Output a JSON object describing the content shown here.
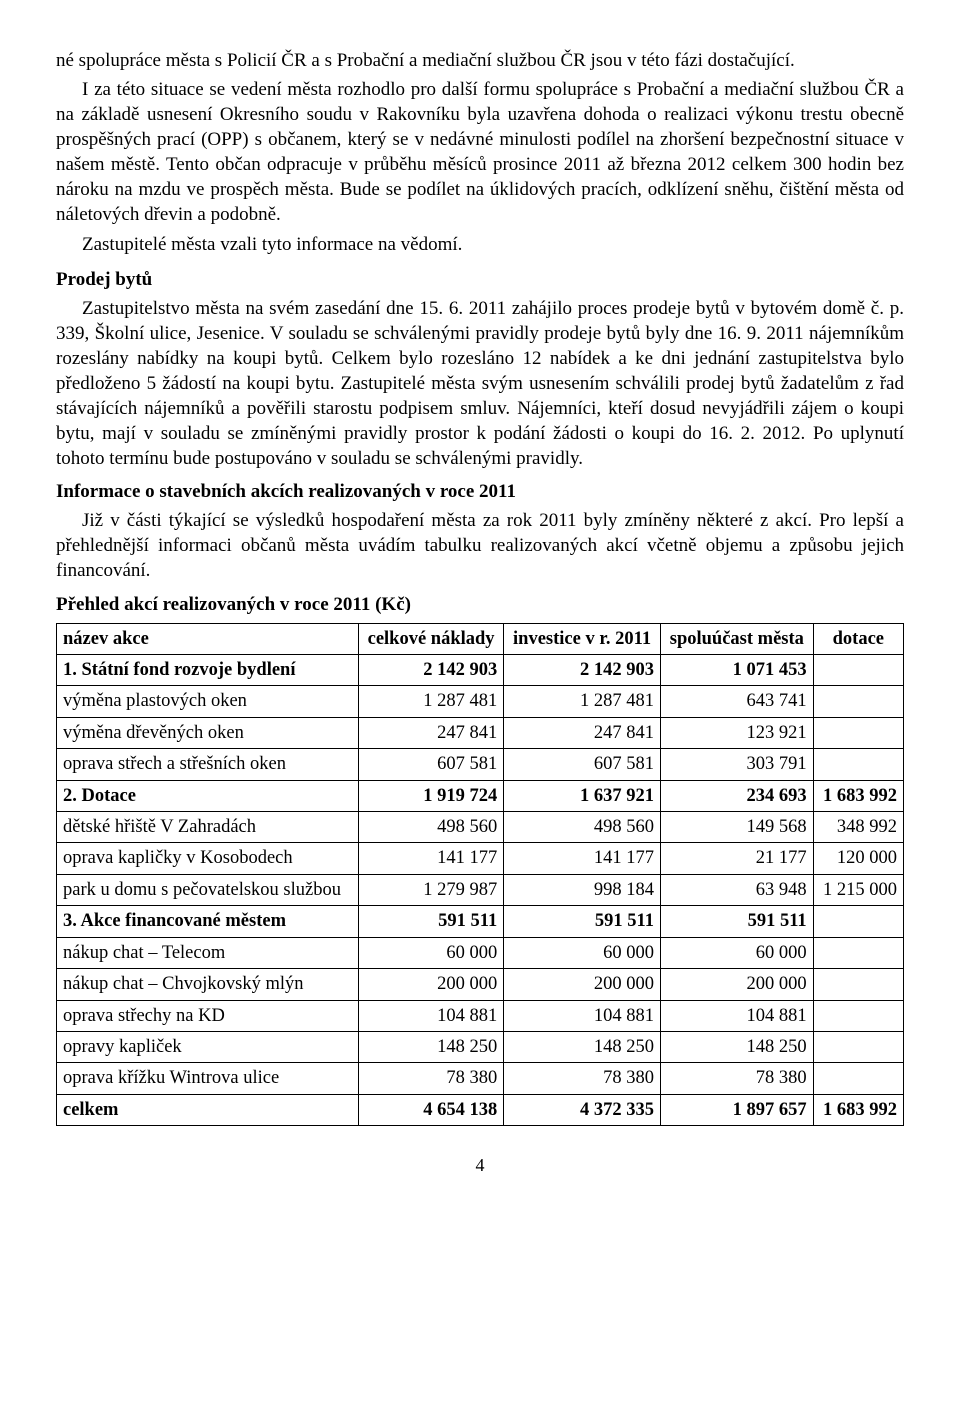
{
  "para1": "né spolupráce města s Policií ČR a s Probační a mediační službou ČR jsou v této fázi dostačující.",
  "para2": "I za této situace se vedení města rozhodlo pro další formu spolupráce s Probační a mediační službou ČR a na základě usnesení Okresního soudu v Rakovníku byla uzavřena dohoda o realizaci výkonu trestu obecně prospěšných prací (OPP) s občanem, který se v nedávné minulosti podílel na zhoršení bezpečnostní situace v našem městě. Tento občan odpracuje v průběhu měsíců prosince 2011 až března 2012 celkem 300 hodin bez nároku na mzdu ve prospěch města. Bude se podílet na úklidových pracích, odklízení sněhu, čištění města od náletových dřevin a podobně.",
  "para3": "Zastupitelé města vzali tyto informace na vědomí.",
  "heading_prodej": "Prodej bytů",
  "para4": "Zastupitelstvo města na svém zasedání dne 15. 6. 2011 zahájilo proces prodeje bytů v bytovém domě č. p. 339, Školní ulice, Jesenice. V souladu se schválenými pravidly prodeje bytů byly dne 16. 9. 2011 nájemníkům rozeslány nabídky na koupi bytů. Celkem bylo rozesláno 12 nabídek a ke dni jednání zastupitelstva bylo předloženo 5 žádostí na koupi bytu. Zastupitelé města svým usnesením schválili prodej bytů žadatelům z řad stávajících nájemníků a pověřili starostu podpisem smluv. Nájemníci, kteří dosud nevyjádřili zájem o koupi bytu, mají v souladu se zmíněnými pravidly prostor k podání žádosti o koupi do 16. 2. 2012. Po uplynutí tohoto termínu bude postupováno v souladu se schválenými pravidly.",
  "heading_info": "Informace o stavebních akcích realizovaných v roce 2011",
  "para5": "Již v části týkající se výsledků hospodaření města za rok 2011 byly zmíněny některé z akcí. Pro lepší a přehlednější informaci občanů města uvádím tabulku realizovaných akcí včetně objemu a způsobu jejich financování.",
  "heading_prehled": "Přehled akcí realizovaných v roce 2011 (Kč)",
  "table": {
    "headers": [
      "název akce",
      "celkové náklady",
      "investice v r. 2011",
      "spoluúčast města",
      "dotace"
    ],
    "rows": [
      {
        "bold": true,
        "cells": [
          "1. Státní fond rozvoje bydlení",
          "2 142 903",
          "2 142 903",
          "1 071 453",
          ""
        ]
      },
      {
        "bold": false,
        "cells": [
          "výměna plastových oken",
          "1 287 481",
          "1 287 481",
          "643 741",
          ""
        ]
      },
      {
        "bold": false,
        "cells": [
          "výměna dřevěných oken",
          "247 841",
          "247 841",
          "123 921",
          ""
        ]
      },
      {
        "bold": false,
        "cells": [
          "oprava střech a střešních oken",
          "607 581",
          "607 581",
          "303 791",
          ""
        ]
      },
      {
        "bold": true,
        "cells": [
          "2. Dotace",
          "1 919 724",
          "1 637 921",
          "234 693",
          "1 683 992"
        ]
      },
      {
        "bold": false,
        "cells": [
          "dětské hřiště V Zahradách",
          "498 560",
          "498 560",
          "149 568",
          "348 992"
        ]
      },
      {
        "bold": false,
        "cells": [
          "oprava kapličky v Kosobodech",
          "141 177",
          "141 177",
          "21 177",
          "120 000"
        ]
      },
      {
        "bold": false,
        "cells": [
          "park u domu s pečovatelskou službou",
          "1 279 987",
          "998 184",
          "63 948",
          "1 215 000"
        ]
      },
      {
        "bold": true,
        "cells": [
          "3. Akce financované městem",
          "591 511",
          "591 511",
          "591 511",
          ""
        ]
      },
      {
        "bold": false,
        "cells": [
          "nákup chat – Telecom",
          "60 000",
          "60 000",
          "60 000",
          ""
        ]
      },
      {
        "bold": false,
        "cells": [
          "nákup chat – Chvojkovský mlýn",
          "200 000",
          "200 000",
          "200 000",
          ""
        ]
      },
      {
        "bold": false,
        "cells": [
          "oprava střechy na KD",
          "104 881",
          "104 881",
          "104 881",
          ""
        ]
      },
      {
        "bold": false,
        "cells": [
          "opravy kapliček",
          "148 250",
          "148 250",
          "148 250",
          ""
        ]
      },
      {
        "bold": false,
        "cells": [
          "oprava křížku Wintrova ulice",
          "78 380",
          "78 380",
          "78 380",
          ""
        ]
      },
      {
        "bold": true,
        "cells": [
          "celkem",
          "4 654 138",
          "4 372 335",
          "1 897 657",
          "1 683 992"
        ]
      }
    ]
  },
  "pagenum": "4"
}
